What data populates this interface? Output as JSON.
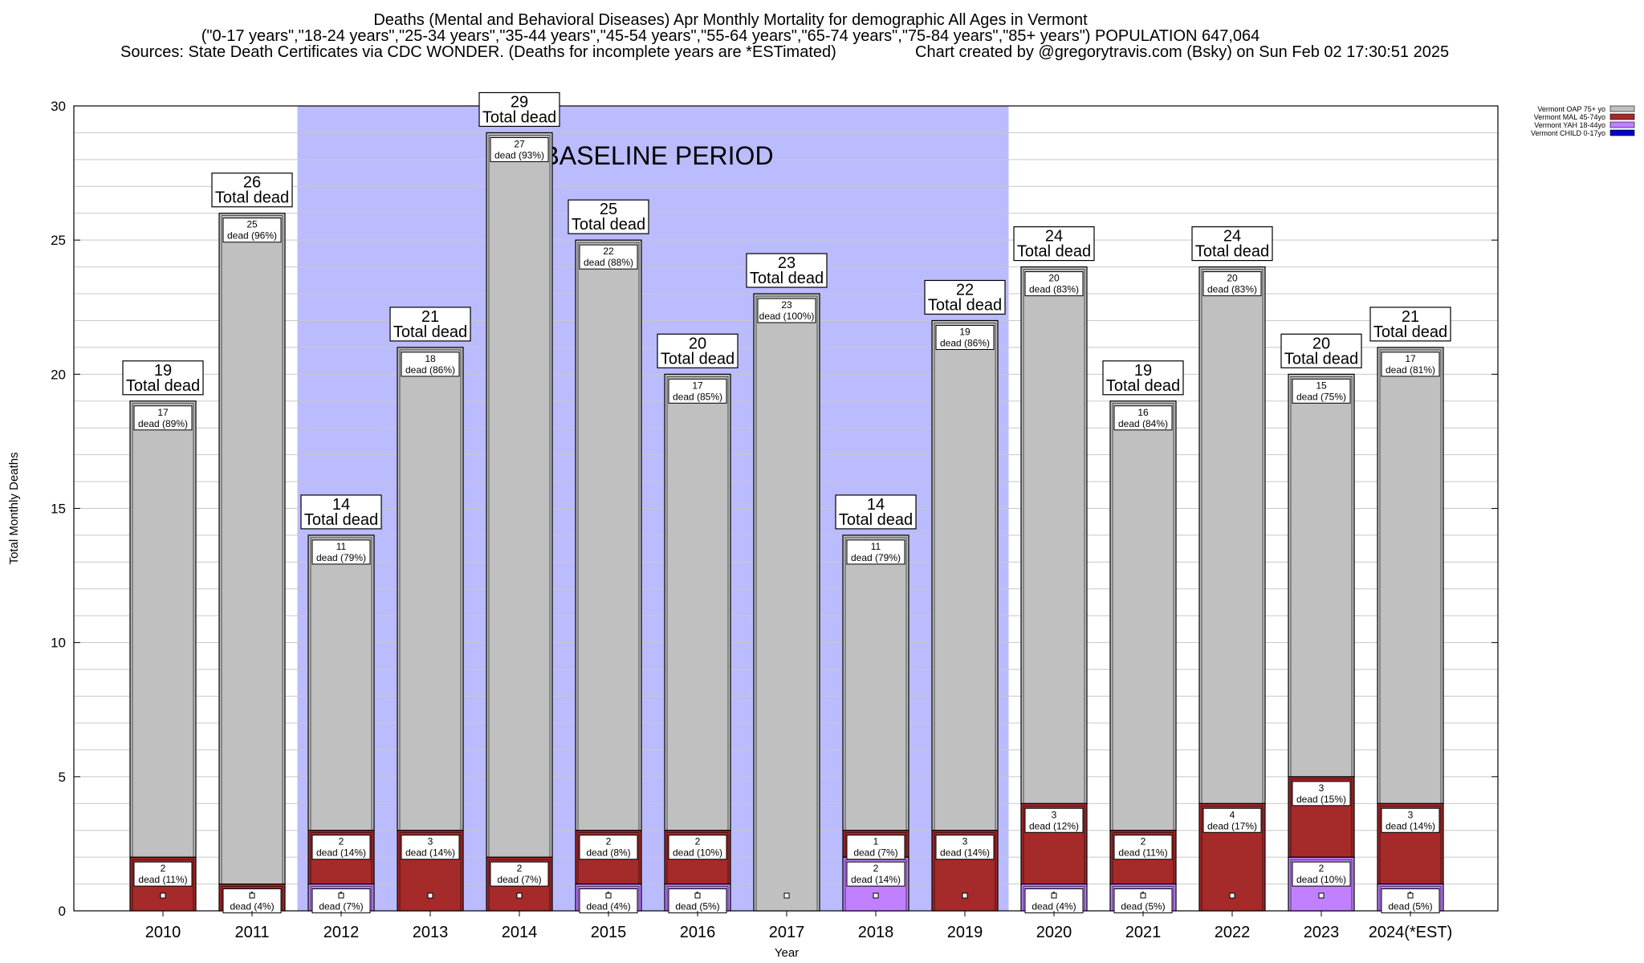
{
  "chart_data": {
    "type": "bar",
    "stacked": true,
    "title": "Deaths (Mental and Behavioral Diseases) Apr Monthly Mortality for demographic All Ages in Vermont",
    "subtitle": "(\"0-17 years\",\"18-24 years\",\"25-34 years\",\"35-44 years\",\"45-54 years\",\"55-64 years\",\"65-74 years\",\"75-84 years\",\"85+ years\") POPULATION 647,064",
    "sources": "Sources: State Death Certificates via CDC WONDER. (Deaths for incomplete years are *ESTimated)",
    "credit": "Chart created by @gregorytravis.com (Bsky) on Sun Feb 02 17:30:51 2025",
    "xlabel": "Year",
    "ylabel": "Total Monthly Deaths",
    "ylim": [
      0,
      30
    ],
    "yticks": [
      0,
      5,
      10,
      15,
      20,
      25,
      30
    ],
    "baseline_label": "BASELINE PERIOD",
    "baseline_range": [
      "2012",
      "2019"
    ],
    "total_suffix": "Total dead",
    "segment_word": "dead",
    "categories": [
      "2010",
      "2011",
      "2012",
      "2013",
      "2014",
      "2015",
      "2016",
      "2017",
      "2018",
      "2019",
      "2020",
      "2021",
      "2022",
      "2023",
      "2024(*EST)"
    ],
    "totals": [
      19,
      26,
      14,
      21,
      29,
      25,
      20,
      23,
      14,
      22,
      24,
      19,
      24,
      20,
      21
    ],
    "series": [
      {
        "name": "Vermont CHILD 0-17yo",
        "color": "#0000cc",
        "values": [
          0,
          0,
          0,
          0,
          0,
          0,
          0,
          0,
          0,
          0,
          0,
          0,
          0,
          0,
          0
        ],
        "percent": [
          0,
          0,
          0,
          0,
          0,
          0,
          0,
          0,
          0,
          0,
          0,
          0,
          0,
          0,
          0
        ]
      },
      {
        "name": "Vermont YAH 18-44yo",
        "color": "#c080ff",
        "values": [
          0,
          0,
          1,
          0,
          0,
          1,
          1,
          0,
          2,
          0,
          1,
          1,
          0,
          2,
          1
        ],
        "percent": [
          0,
          0,
          7,
          0,
          0,
          4,
          5,
          0,
          14,
          0,
          4,
          5,
          0,
          10,
          5
        ]
      },
      {
        "name": "Vermont MAL 45-74yo",
        "color": "#a52a2a",
        "values": [
          2,
          1,
          2,
          3,
          2,
          2,
          2,
          0,
          1,
          3,
          3,
          2,
          4,
          3,
          3
        ],
        "percent": [
          11,
          4,
          14,
          14,
          7,
          8,
          10,
          0,
          7,
          14,
          12,
          11,
          17,
          15,
          14
        ]
      },
      {
        "name": "Vermont OAP 75+ yo",
        "color": "#c0c0c0",
        "values": [
          17,
          25,
          11,
          18,
          27,
          22,
          17,
          23,
          11,
          19,
          20,
          16,
          20,
          15,
          17
        ],
        "percent": [
          89,
          96,
          79,
          86,
          93,
          88,
          85,
          100,
          79,
          86,
          83,
          84,
          83,
          75,
          81
        ]
      }
    ],
    "legend_order": [
      "Vermont OAP 75+ yo",
      "Vermont MAL 45-74yo",
      "Vermont YAH 18-44yo",
      "Vermont CHILD 0-17yo"
    ],
    "legend_position": "top-right"
  }
}
